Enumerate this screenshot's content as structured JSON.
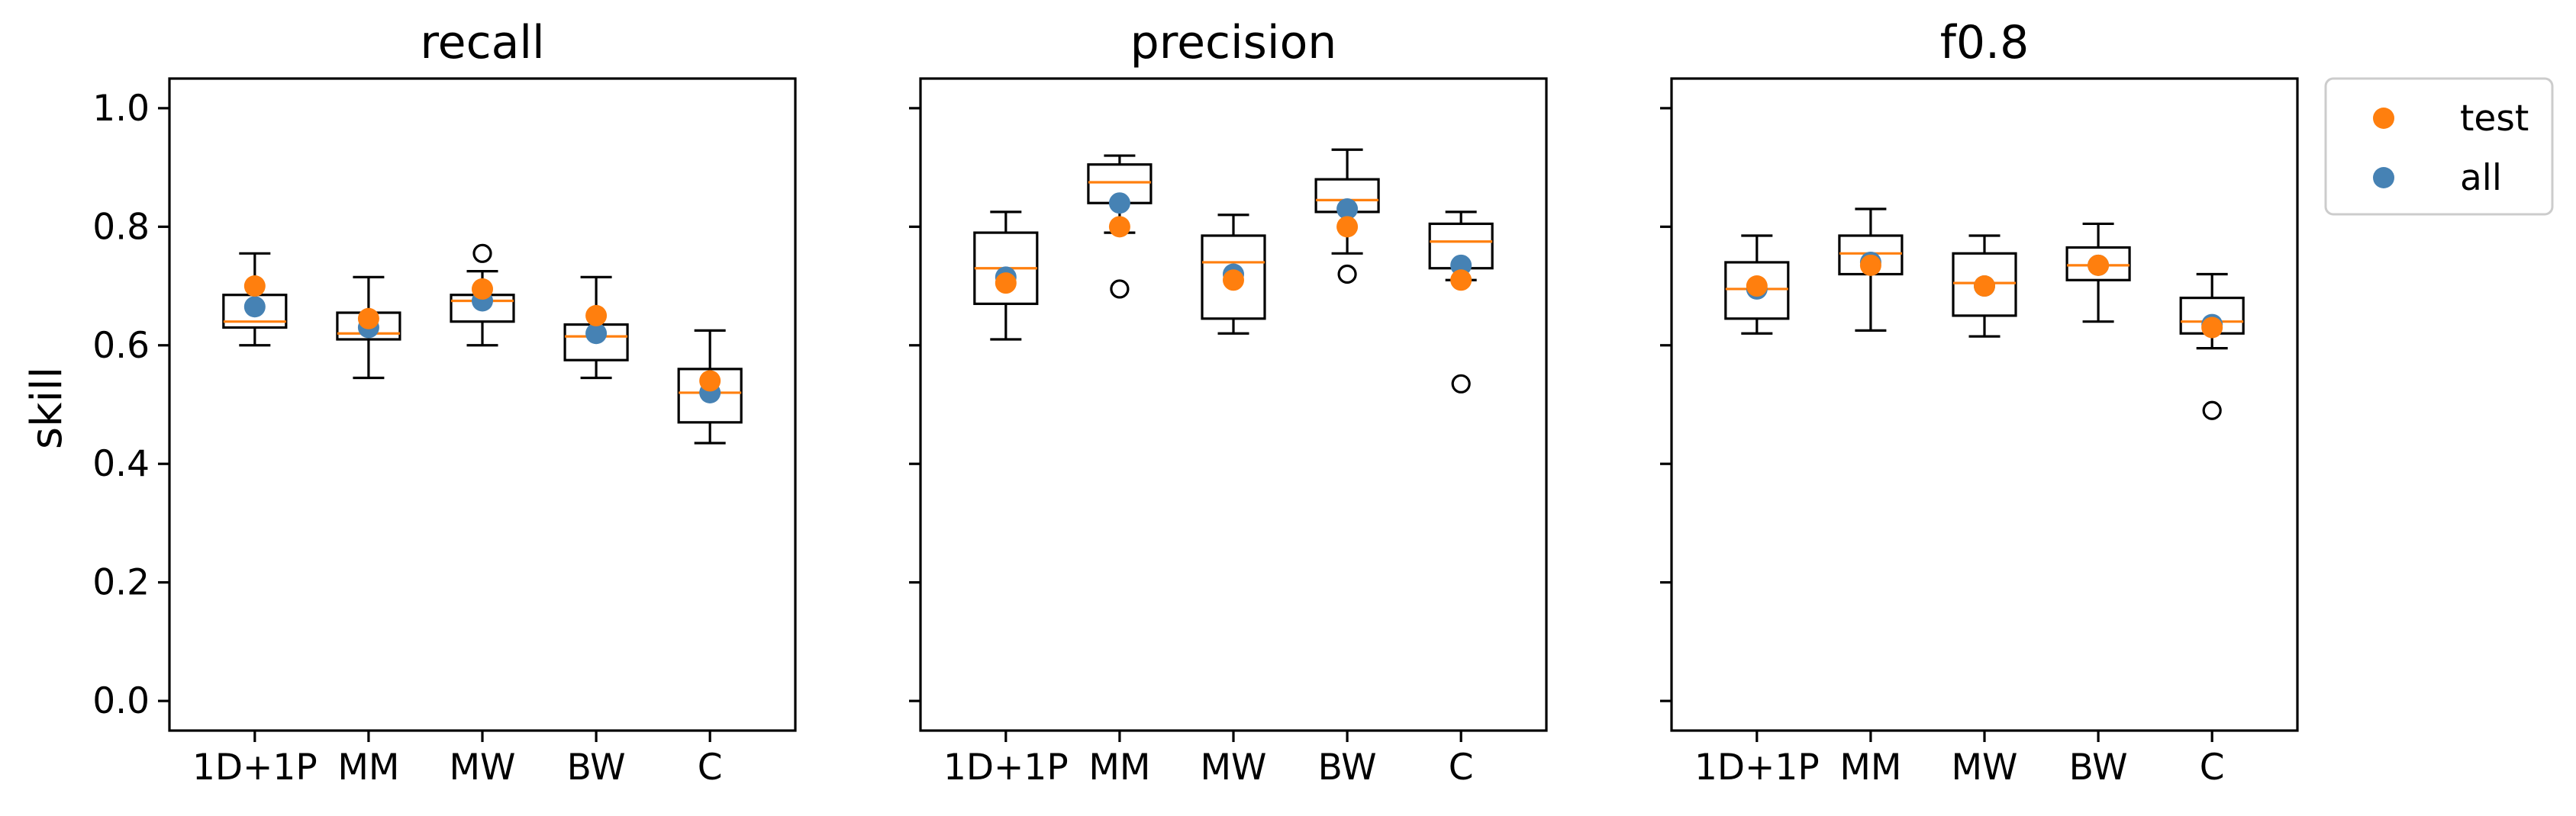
{
  "chart_data": {
    "type": "box",
    "ylabel": "skill",
    "ylim": [
      -0.05,
      1.05
    ],
    "yticks": [
      "0.0",
      "0.2",
      "0.4",
      "0.6",
      "0.8",
      "1.0"
    ],
    "ytick_values": [
      0.0,
      0.2,
      0.4,
      0.6,
      0.8,
      1.0
    ],
    "categories": [
      "1D+1P",
      "MM",
      "MW",
      "BW",
      "C"
    ],
    "legend": {
      "placement": "outside-right-top",
      "entries": [
        {
          "name": "test",
          "color": "#ff7f0e"
        },
        {
          "name": "all",
          "color": "#4682b4"
        }
      ]
    },
    "colors": {
      "median": "#ff7f0e",
      "test": "#ff7f0e",
      "all": "#4682b4",
      "box": "#000000"
    },
    "panels": [
      {
        "title": "recall",
        "boxes": [
          {
            "whislo": 0.6,
            "q1": 0.63,
            "med": 0.64,
            "q3": 0.685,
            "whishi": 0.755,
            "fliers": []
          },
          {
            "whislo": 0.545,
            "q1": 0.61,
            "med": 0.62,
            "q3": 0.655,
            "whishi": 0.715,
            "fliers": []
          },
          {
            "whislo": 0.6,
            "q1": 0.64,
            "med": 0.675,
            "q3": 0.685,
            "whishi": 0.725,
            "fliers": [
              0.755
            ]
          },
          {
            "whislo": 0.545,
            "q1": 0.575,
            "med": 0.615,
            "q3": 0.635,
            "whishi": 0.715,
            "fliers": []
          },
          {
            "whislo": 0.435,
            "q1": 0.47,
            "med": 0.52,
            "q3": 0.56,
            "whishi": 0.625,
            "fliers": []
          }
        ],
        "test": [
          0.7,
          0.645,
          0.695,
          0.65,
          0.54
        ],
        "all": [
          0.665,
          0.63,
          0.675,
          0.62,
          0.52
        ]
      },
      {
        "title": "precision",
        "boxes": [
          {
            "whislo": 0.61,
            "q1": 0.67,
            "med": 0.73,
            "q3": 0.79,
            "whishi": 0.825,
            "fliers": []
          },
          {
            "whislo": 0.79,
            "q1": 0.84,
            "med": 0.875,
            "q3": 0.905,
            "whishi": 0.92,
            "fliers": [
              0.695
            ]
          },
          {
            "whislo": 0.62,
            "q1": 0.645,
            "med": 0.74,
            "q3": 0.785,
            "whishi": 0.82,
            "fliers": []
          },
          {
            "whislo": 0.755,
            "q1": 0.825,
            "med": 0.845,
            "q3": 0.88,
            "whishi": 0.93,
            "fliers": [
              0.72
            ]
          },
          {
            "whislo": 0.71,
            "q1": 0.73,
            "med": 0.775,
            "q3": 0.805,
            "whishi": 0.825,
            "fliers": [
              0.535
            ]
          }
        ],
        "test": [
          0.705,
          0.8,
          0.71,
          0.8,
          0.71
        ],
        "all": [
          0.715,
          0.84,
          0.72,
          0.83,
          0.735
        ]
      },
      {
        "title": "f0.8",
        "boxes": [
          {
            "whislo": 0.62,
            "q1": 0.645,
            "med": 0.695,
            "q3": 0.74,
            "whishi": 0.785,
            "fliers": []
          },
          {
            "whislo": 0.625,
            "q1": 0.72,
            "med": 0.755,
            "q3": 0.785,
            "whishi": 0.83,
            "fliers": []
          },
          {
            "whislo": 0.615,
            "q1": 0.65,
            "med": 0.705,
            "q3": 0.755,
            "whishi": 0.785,
            "fliers": []
          },
          {
            "whislo": 0.64,
            "q1": 0.71,
            "med": 0.735,
            "q3": 0.765,
            "whishi": 0.805,
            "fliers": []
          },
          {
            "whislo": 0.595,
            "q1": 0.62,
            "med": 0.64,
            "q3": 0.68,
            "whishi": 0.72,
            "fliers": [
              0.49
            ]
          }
        ],
        "test": [
          0.7,
          0.735,
          0.7,
          0.735,
          0.63
        ],
        "all": [
          0.695,
          0.74,
          0.7,
          0.735,
          0.635
        ]
      }
    ]
  }
}
